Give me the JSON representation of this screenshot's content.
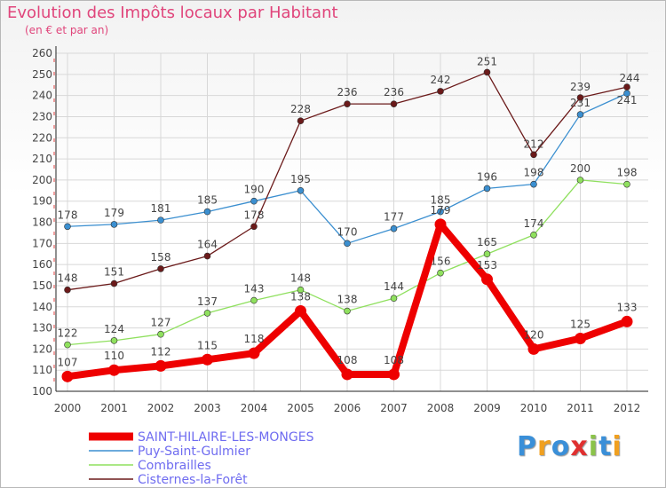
{
  "chart_data": {
    "type": "line",
    "title": "Evolution des Impôts locaux par Habitant",
    "subtitle": "(en € et par an)",
    "x": [
      "2000",
      "2001",
      "2002",
      "2003",
      "2004",
      "2005",
      "2006",
      "2007",
      "2008",
      "2009",
      "2010",
      "2011",
      "2012"
    ],
    "ylim": [
      100,
      260
    ],
    "yticks": [
      100,
      110,
      120,
      130,
      140,
      150,
      160,
      170,
      180,
      190,
      200,
      210,
      220,
      230,
      240,
      250,
      260
    ],
    "grid": true,
    "legend": "bottom-left",
    "series": [
      {
        "name": "SAINT-HILAIRE-LES-MONGES",
        "color": "#ee0000",
        "values": [
          107,
          110,
          112,
          115,
          118,
          138,
          108,
          108,
          179,
          153,
          120,
          125,
          133
        ]
      },
      {
        "name": "Puy-Saint-Gulmier",
        "color": "#3b8fd0",
        "values": [
          178,
          179,
          181,
          185,
          190,
          195,
          170,
          177,
          185,
          196,
          198,
          231,
          241
        ]
      },
      {
        "name": "Combrailles",
        "color": "#8fe05e",
        "values": [
          122,
          124,
          127,
          137,
          143,
          148,
          138,
          144,
          156,
          165,
          174,
          200,
          198
        ]
      },
      {
        "name": "Cisternes-la-Forêt",
        "color": "#6b1a1a",
        "values": [
          148,
          151,
          158,
          164,
          178,
          228,
          236,
          236,
          242,
          251,
          212,
          239,
          244
        ]
      }
    ]
  },
  "logo": {
    "text": "Proxiti"
  },
  "colors": {
    "title": "#e0457b",
    "legend_text": "#6f6cf0",
    "grid": "#d8d8d8"
  }
}
